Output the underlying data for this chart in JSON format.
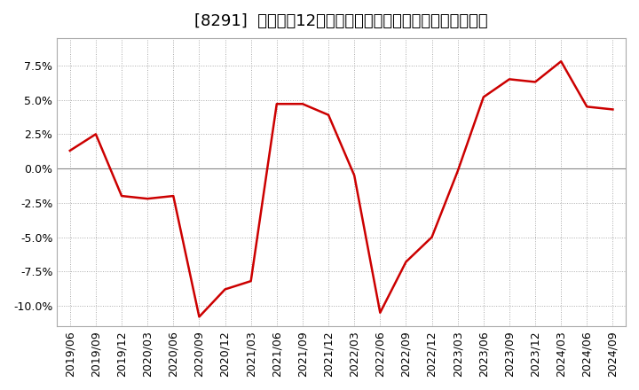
{
  "title": "[8291]  売上高の12か月移動合計の対前年同期増減率の推移",
  "x_labels": [
    "2019/06",
    "2019/09",
    "2019/12",
    "2020/03",
    "2020/06",
    "2020/09",
    "2020/12",
    "2021/03",
    "2021/06",
    "2021/09",
    "2021/12",
    "2022/03",
    "2022/06",
    "2022/09",
    "2022/12",
    "2023/03",
    "2023/06",
    "2023/09",
    "2023/12",
    "2024/03",
    "2024/06",
    "2024/09"
  ],
  "y_values": [
    1.3,
    2.5,
    -2.0,
    -2.2,
    -2.0,
    -10.8,
    -8.8,
    -8.2,
    4.7,
    4.7,
    3.9,
    -0.5,
    -10.5,
    -6.8,
    -5.0,
    -0.2,
    5.2,
    6.5,
    6.3,
    7.8,
    4.5,
    4.3
  ],
  "line_color": "#cc0000",
  "background_color": "#ffffff",
  "plot_bg_color": "#ffffff",
  "grid_color": "#aaaaaa",
  "ylim": [
    -11.5,
    9.5
  ],
  "yticks": [
    -10.0,
    -7.5,
    -5.0,
    -2.5,
    0.0,
    2.5,
    5.0,
    7.5
  ],
  "title_fontsize": 13,
  "tick_fontsize": 9
}
